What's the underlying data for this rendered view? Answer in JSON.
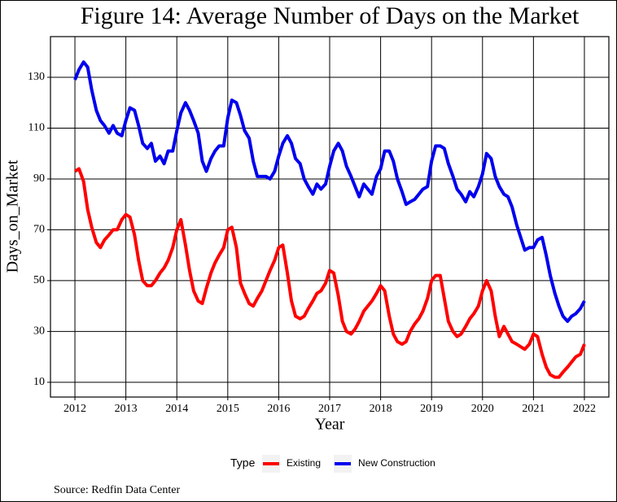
{
  "chart_data": {
    "type": "line",
    "title": "Figure 14: Average Number of Days on the Market",
    "x_label": "Year",
    "y_label": "Days_on_Market",
    "legend_title": "Type",
    "legend_position": "bottom",
    "caption": "Source: Redfin Data Center",
    "grid": true,
    "xlim": [
      2011.52,
      2022.48
    ],
    "xticks": [
      2012,
      2013,
      2014,
      2015,
      2016,
      2017,
      2018,
      2019,
      2020,
      2021,
      2022
    ],
    "ylim": [
      4.2,
      146
    ],
    "yticks": [
      10,
      30,
      50,
      70,
      90,
      110,
      130
    ],
    "x": [
      2012,
      2012.08,
      2012.17,
      2012.25,
      2012.33,
      2012.42,
      2012.5,
      2012.58,
      2012.67,
      2012.75,
      2012.83,
      2012.92,
      2013,
      2013.08,
      2013.17,
      2013.25,
      2013.33,
      2013.42,
      2013.5,
      2013.58,
      2013.67,
      2013.75,
      2013.83,
      2013.92,
      2014,
      2014.08,
      2014.17,
      2014.25,
      2014.33,
      2014.42,
      2014.5,
      2014.58,
      2014.67,
      2014.75,
      2014.83,
      2014.92,
      2015,
      2015.08,
      2015.17,
      2015.25,
      2015.33,
      2015.42,
      2015.5,
      2015.58,
      2015.67,
      2015.75,
      2015.83,
      2015.92,
      2016,
      2016.08,
      2016.17,
      2016.25,
      2016.33,
      2016.42,
      2016.5,
      2016.58,
      2016.67,
      2016.75,
      2016.83,
      2016.92,
      2017,
      2017.08,
      2017.17,
      2017.25,
      2017.33,
      2017.42,
      2017.5,
      2017.58,
      2017.67,
      2017.75,
      2017.83,
      2017.92,
      2018,
      2018.08,
      2018.17,
      2018.25,
      2018.33,
      2018.42,
      2018.5,
      2018.58,
      2018.67,
      2018.75,
      2018.83,
      2018.92,
      2019,
      2019.08,
      2019.17,
      2019.25,
      2019.33,
      2019.42,
      2019.5,
      2019.58,
      2019.67,
      2019.75,
      2019.83,
      2019.92,
      2020,
      2020.08,
      2020.17,
      2020.25,
      2020.33,
      2020.42,
      2020.5,
      2020.58,
      2020.67,
      2020.75,
      2020.83,
      2020.92,
      2021,
      2021.08,
      2021.17,
      2021.25,
      2021.33,
      2021.42,
      2021.5,
      2021.58,
      2021.67,
      2021.75,
      2021.83,
      2021.92,
      2022
    ],
    "series": [
      {
        "name": "Existing",
        "color": "#ff0000",
        "values": [
          93,
          94,
          89,
          78,
          71,
          65,
          63,
          66,
          68,
          70,
          70,
          74,
          76,
          75,
          68,
          58,
          50,
          48,
          48,
          50,
          53,
          55,
          58,
          63,
          70,
          74,
          64,
          54,
          46,
          42,
          41,
          47,
          53,
          57,
          60,
          63,
          70,
          71,
          63,
          49,
          45,
          41,
          40,
          43,
          46,
          50,
          54,
          58,
          63,
          64,
          53,
          42,
          36,
          35,
          36,
          39,
          42,
          45,
          46,
          49,
          54,
          53,
          44,
          34,
          30,
          29,
          31,
          34,
          38,
          40,
          42,
          45,
          48,
          46,
          36,
          29,
          26,
          25,
          26,
          30,
          33,
          35,
          38,
          43,
          50,
          52,
          52,
          43,
          34,
          30,
          28,
          29,
          32,
          35,
          37,
          40,
          46,
          50,
          46,
          36,
          28,
          32,
          29,
          26,
          25,
          24,
          23,
          25,
          29,
          28,
          21,
          16,
          13,
          12,
          12,
          14,
          16,
          18,
          20,
          21,
          25
        ]
      },
      {
        "name": "New Construction",
        "color": "#0000ee",
        "values": [
          129,
          133,
          136,
          134,
          125,
          117,
          113,
          111,
          108,
          111,
          108,
          107,
          113,
          118,
          117,
          111,
          104,
          102,
          104,
          97,
          99,
          96,
          101,
          101,
          109,
          116,
          120,
          117,
          113,
          108,
          97,
          93,
          98,
          101,
          103,
          103,
          114,
          121,
          120,
          115,
          109,
          106,
          97,
          91,
          91,
          91,
          90,
          93,
          99,
          104,
          107,
          104,
          98,
          96,
          90,
          87,
          84,
          88,
          86,
          88,
          95,
          101,
          104,
          101,
          95,
          91,
          87,
          83,
          88,
          86,
          84,
          91,
          94,
          101,
          101,
          97,
          90,
          85,
          80,
          81,
          82,
          84,
          86,
          87,
          97,
          103,
          103,
          102,
          96,
          91,
          86,
          84,
          81,
          85,
          83,
          87,
          92,
          100,
          98,
          91,
          87,
          84,
          83,
          79,
          72,
          67,
          62,
          63,
          63,
          66,
          67,
          60,
          52,
          45,
          40,
          36,
          34,
          36,
          37,
          39,
          42
        ]
      }
    ]
  }
}
